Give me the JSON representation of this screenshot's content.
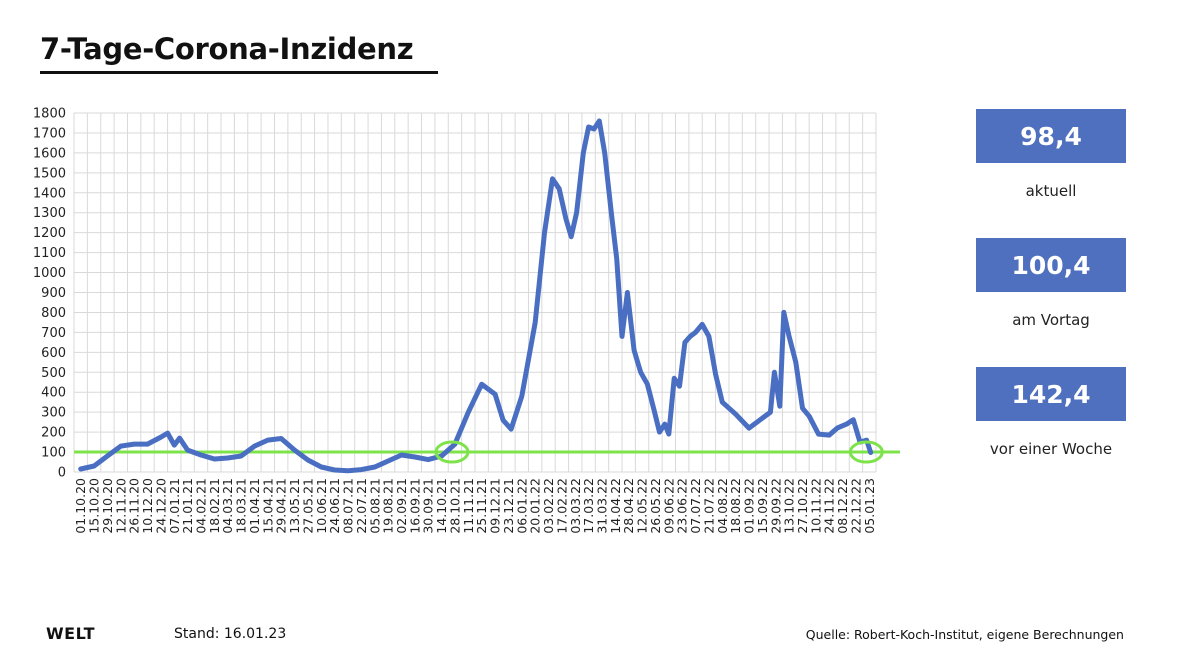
{
  "title": "7-Tage-Corona-Inzidenz",
  "kpis": [
    {
      "value": "98,4",
      "label": "aktuell"
    },
    {
      "value": "100,4",
      "label": "am Vortag"
    },
    {
      "value": "142,4",
      "label": "vor einer Woche"
    }
  ],
  "footer": {
    "brand": "WELT",
    "stand": "Stand:  16.01.23",
    "source": "Quelle: Robert-Koch-Institut, eigene Berechnungen"
  },
  "colors": {
    "line": "#4a6fc2",
    "reference": "#7ee34a",
    "kpi_box": "#4f6fbf",
    "grid": "#d9d9d9"
  },
  "chart_data": {
    "type": "line",
    "title": "7-Tage-Corona-Inzidenz",
    "xlabel": "",
    "ylabel": "",
    "ylim": [
      0,
      1800
    ],
    "yticks": [
      0,
      100,
      200,
      300,
      400,
      500,
      600,
      700,
      800,
      900,
      1000,
      1100,
      1200,
      1300,
      1400,
      1500,
      1600,
      1700,
      1800
    ],
    "x_categories": [
      "01.10.20",
      "15.10.20",
      "29.10.20",
      "12.11.20",
      "26.11.20",
      "10.12.20",
      "24.12.20",
      "07.01.21",
      "21.01.21",
      "04.02.21",
      "18.02.21",
      "04.03.21",
      "18.03.21",
      "01.04.21",
      "15.04.21",
      "29.04.21",
      "13.05.21",
      "27.05.21",
      "10.06.21",
      "24.06.21",
      "08.07.21",
      "22.07.21",
      "05.08.21",
      "19.08.21",
      "02.09.21",
      "16.09.21",
      "30.09.21",
      "14.10.21",
      "28.10.21",
      "11.11.21",
      "25.11.21",
      "09.12.21",
      "23.12.21",
      "06.01.22",
      "20.01.22",
      "03.02.22",
      "17.02.22",
      "03.03.22",
      "17.03.22",
      "31.03.22",
      "14.04.22",
      "28.04.22",
      "12.05.22",
      "26.05.22",
      "09.06.22",
      "23.06.22",
      "07.07.22",
      "21.07.22",
      "04.08.22",
      "18.08.22",
      "01.09.22",
      "15.09.22",
      "29.09.22",
      "13.10.22",
      "27.10.22",
      "10.11.22",
      "24.11.22",
      "08.12.22",
      "22.12.22",
      "05.01.23"
    ],
    "series": [
      {
        "values": [
          [
            0,
            15
          ],
          [
            1,
            30
          ],
          [
            2,
            80
          ],
          [
            3,
            130
          ],
          [
            4,
            140
          ],
          [
            5,
            140
          ],
          [
            6,
            175
          ],
          [
            6.5,
            195
          ],
          [
            7,
            135
          ],
          [
            7.4,
            170
          ],
          [
            8,
            110
          ],
          [
            9,
            85
          ],
          [
            10,
            65
          ],
          [
            11,
            70
          ],
          [
            12,
            80
          ],
          [
            13,
            130
          ],
          [
            14,
            160
          ],
          [
            15,
            168
          ],
          [
            16,
            110
          ],
          [
            17,
            60
          ],
          [
            18,
            25
          ],
          [
            19,
            10
          ],
          [
            20,
            6
          ],
          [
            21,
            12
          ],
          [
            22,
            25
          ],
          [
            23,
            55
          ],
          [
            24,
            85
          ],
          [
            25,
            75
          ],
          [
            26,
            62
          ],
          [
            27,
            80
          ],
          [
            28,
            140
          ],
          [
            29,
            300
          ],
          [
            30,
            440
          ],
          [
            31,
            390
          ],
          [
            31.6,
            260
          ],
          [
            32.2,
            215
          ],
          [
            33,
            380
          ],
          [
            34,
            750
          ],
          [
            34.7,
            1200
          ],
          [
            35.3,
            1470
          ],
          [
            35.8,
            1420
          ],
          [
            36.3,
            1270
          ],
          [
            36.7,
            1180
          ],
          [
            37.1,
            1300
          ],
          [
            37.6,
            1600
          ],
          [
            38,
            1730
          ],
          [
            38.4,
            1720
          ],
          [
            38.8,
            1760
          ],
          [
            39.2,
            1600
          ],
          [
            39.7,
            1300
          ],
          [
            40.1,
            1070
          ],
          [
            40.5,
            680
          ],
          [
            40.9,
            900
          ],
          [
            41.4,
            610
          ],
          [
            41.9,
            500
          ],
          [
            42.4,
            440
          ],
          [
            42.9,
            310
          ],
          [
            43.3,
            200
          ],
          [
            43.7,
            240
          ],
          [
            44,
            190
          ],
          [
            44.4,
            470
          ],
          [
            44.8,
            430
          ],
          [
            45.2,
            650
          ],
          [
            45.6,
            680
          ],
          [
            46,
            700
          ],
          [
            46.5,
            740
          ],
          [
            47,
            680
          ],
          [
            47.5,
            490
          ],
          [
            48,
            350
          ],
          [
            49,
            290
          ],
          [
            50,
            220
          ],
          [
            51,
            270
          ],
          [
            51.6,
            300
          ],
          [
            51.9,
            500
          ],
          [
            52.3,
            330
          ],
          [
            52.6,
            800
          ],
          [
            53,
            680
          ],
          [
            53.5,
            550
          ],
          [
            54,
            320
          ],
          [
            54.5,
            280
          ],
          [
            55.2,
            190
          ],
          [
            56,
            185
          ],
          [
            56.6,
            220
          ],
          [
            57.3,
            240
          ],
          [
            57.8,
            262
          ],
          [
            58.3,
            150
          ],
          [
            58.8,
            160
          ],
          [
            59.1,
            98
          ]
        ]
      }
    ],
    "reference_value": 100,
    "highlights": [
      {
        "x": "28.10.21",
        "y": 100
      },
      {
        "x": "05.01.23",
        "y": 100
      }
    ]
  }
}
